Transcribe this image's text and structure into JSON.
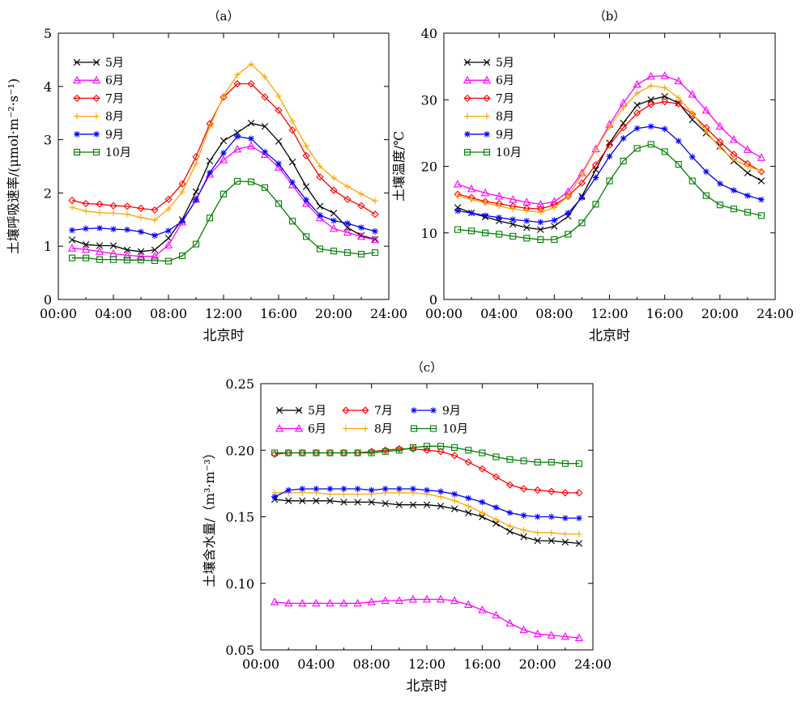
{
  "chart_data": [
    {
      "type": "line",
      "panel_label": "（a）",
      "xlabel": "北京时",
      "ylabel": "土壤呼吸速率/(μmol·m⁻²·s⁻¹)",
      "xlim": [
        0,
        24
      ],
      "ylim": [
        0,
        5
      ],
      "xticks": [
        0,
        4,
        8,
        12,
        16,
        20,
        24
      ],
      "xtick_labels": [
        "00:00",
        "04:00",
        "08:00",
        "12:00",
        "16:00",
        "20:00",
        "24:00"
      ],
      "yticks": [
        0,
        1,
        2,
        3,
        4,
        5
      ],
      "ytick_labels": [
        "0",
        "1",
        "2",
        "3",
        "4",
        "5"
      ],
      "legend": "top-left",
      "x": [
        1,
        2,
        3,
        4,
        5,
        6,
        7,
        8,
        9,
        10,
        11,
        12,
        13,
        14,
        15,
        16,
        17,
        18,
        19,
        20,
        21,
        22,
        23
      ],
      "series": [
        {
          "name": "5月",
          "color": "#000000",
          "marker": "x",
          "values": [
            1.12,
            1.03,
            1.01,
            1.01,
            0.93,
            0.9,
            0.93,
            1.15,
            1.5,
            2.02,
            2.6,
            2.98,
            3.13,
            3.31,
            3.25,
            2.97,
            2.58,
            2.12,
            1.75,
            1.62,
            1.35,
            1.2,
            1.13
          ]
        },
        {
          "name": "6月",
          "color": "#ff00ff",
          "marker": "triangle",
          "values": [
            0.96,
            0.94,
            0.9,
            0.86,
            0.83,
            0.81,
            0.81,
            1.02,
            1.45,
            1.88,
            2.35,
            2.62,
            2.82,
            2.88,
            2.72,
            2.48,
            2.15,
            1.8,
            1.53,
            1.33,
            1.26,
            1.18,
            1.12
          ]
        },
        {
          "name": "7月",
          "color": "#ff0000",
          "marker": "diamond",
          "values": [
            1.86,
            1.8,
            1.79,
            1.76,
            1.75,
            1.71,
            1.68,
            1.88,
            2.17,
            2.68,
            3.3,
            3.8,
            4.05,
            4.05,
            3.8,
            3.55,
            3.18,
            2.7,
            2.3,
            2.05,
            1.88,
            1.76,
            1.6
          ]
        },
        {
          "name": "8月",
          "color": "#ffa500",
          "marker": "plus",
          "values": [
            1.73,
            1.66,
            1.63,
            1.62,
            1.6,
            1.54,
            1.49,
            1.7,
            2.02,
            2.55,
            3.25,
            3.82,
            4.22,
            4.42,
            4.18,
            3.82,
            3.35,
            2.88,
            2.5,
            2.28,
            2.12,
            1.98,
            1.85
          ]
        },
        {
          "name": "9月",
          "color": "#0000ff",
          "marker": "asterisk",
          "values": [
            1.3,
            1.33,
            1.34,
            1.32,
            1.31,
            1.27,
            1.2,
            1.29,
            1.47,
            1.87,
            2.38,
            2.75,
            3.06,
            3.02,
            2.77,
            2.55,
            2.2,
            1.87,
            1.58,
            1.48,
            1.43,
            1.35,
            1.28
          ]
        },
        {
          "name": "10月",
          "color": "#008000",
          "marker": "square",
          "values": [
            0.78,
            0.78,
            0.75,
            0.75,
            0.74,
            0.74,
            0.73,
            0.72,
            0.82,
            1.04,
            1.53,
            1.98,
            2.22,
            2.21,
            2.1,
            1.8,
            1.47,
            1.18,
            0.95,
            0.91,
            0.88,
            0.85,
            0.88
          ]
        }
      ]
    },
    {
      "type": "line",
      "panel_label": "（b）",
      "xlabel": "北京时",
      "ylabel": "土壤温度/℃",
      "xlim": [
        0,
        24
      ],
      "ylim": [
        0,
        40
      ],
      "xticks": [
        0,
        4,
        8,
        12,
        16,
        20,
        24
      ],
      "xtick_labels": [
        "00:00",
        "04:00",
        "08:00",
        "12:00",
        "16:00",
        "20:00",
        "24:00"
      ],
      "yticks": [
        0,
        10,
        20,
        30,
        40
      ],
      "ytick_labels": [
        "0",
        "10",
        "20",
        "30",
        "40"
      ],
      "legend": "top-left",
      "x": [
        1,
        2,
        3,
        4,
        5,
        6,
        7,
        8,
        9,
        10,
        11,
        12,
        13,
        14,
        15,
        16,
        17,
        18,
        19,
        20,
        21,
        22,
        23
      ],
      "series": [
        {
          "name": "5月",
          "color": "#000000",
          "marker": "x",
          "values": [
            13.8,
            13.0,
            12.4,
            11.8,
            11.3,
            10.8,
            10.5,
            11.0,
            12.5,
            15.5,
            19.5,
            23.5,
            26.5,
            29.2,
            30.0,
            30.5,
            29.5,
            27.0,
            25.0,
            23.0,
            20.8,
            19.0,
            17.8
          ]
        },
        {
          "name": "6月",
          "color": "#ff00ff",
          "marker": "triangle",
          "values": [
            17.3,
            16.6,
            16.0,
            15.5,
            15.0,
            14.6,
            14.3,
            14.7,
            16.2,
            19.0,
            22.6,
            26.3,
            29.5,
            32.3,
            33.5,
            33.6,
            32.8,
            30.8,
            28.4,
            26.0,
            24.0,
            22.5,
            21.3
          ]
        },
        {
          "name": "7月",
          "color": "#ff0000",
          "marker": "diamond",
          "values": [
            15.8,
            15.3,
            14.7,
            14.4,
            14.0,
            13.7,
            13.6,
            14.2,
            15.5,
            17.5,
            20.2,
            23.2,
            25.8,
            28.0,
            29.3,
            29.7,
            29.4,
            27.8,
            25.8,
            23.7,
            21.8,
            20.4,
            19.2
          ]
        },
        {
          "name": "8月",
          "color": "#ffa500",
          "marker": "plus",
          "values": [
            15.6,
            15.0,
            14.5,
            14.0,
            13.6,
            13.3,
            13.1,
            13.8,
            15.5,
            18.8,
            22.5,
            26.0,
            28.8,
            31.0,
            32.1,
            31.8,
            30.3,
            28.0,
            25.2,
            22.8,
            21.0,
            20.0,
            19.3
          ]
        },
        {
          "name": "9月",
          "color": "#0000ff",
          "marker": "asterisk",
          "values": [
            13.3,
            13.0,
            12.6,
            12.3,
            12.0,
            11.8,
            11.6,
            11.9,
            13.0,
            15.3,
            18.3,
            21.5,
            24.2,
            25.7,
            26.0,
            25.6,
            23.8,
            21.4,
            19.2,
            17.4,
            16.4,
            15.6,
            15.0
          ]
        },
        {
          "name": "10月",
          "color": "#008000",
          "marker": "square",
          "values": [
            10.5,
            10.3,
            10.0,
            9.8,
            9.5,
            9.2,
            9.0,
            9.0,
            9.8,
            11.5,
            14.3,
            17.8,
            20.8,
            22.7,
            23.3,
            22.2,
            20.3,
            17.8,
            15.6,
            14.2,
            13.6,
            13.1,
            12.6
          ]
        }
      ]
    },
    {
      "type": "line",
      "panel_label": "（c）",
      "xlabel": "北京时",
      "ylabel": "土壤含水量/（m³·m⁻³）",
      "xlim": [
        0,
        24
      ],
      "ylim": [
        0.05,
        0.25
      ],
      "xticks": [
        0,
        4,
        8,
        12,
        16,
        20,
        24
      ],
      "xtick_labels": [
        "00:00",
        "04:00",
        "08:00",
        "12:00",
        "16:00",
        "20:00",
        "24:00"
      ],
      "yticks": [
        0.05,
        0.1,
        0.15,
        0.2,
        0.25
      ],
      "ytick_labels": [
        "0.05",
        "0.10",
        "0.15",
        "0.20",
        "0.25"
      ],
      "legend": "top (two rows, three columns)",
      "x": [
        1,
        2,
        3,
        4,
        5,
        6,
        7,
        8,
        9,
        10,
        11,
        12,
        13,
        14,
        15,
        16,
        17,
        18,
        19,
        20,
        21,
        22,
        23
      ],
      "series": [
        {
          "name": "5月",
          "color": "#000000",
          "marker": "x",
          "values": [
            0.163,
            0.162,
            0.162,
            0.162,
            0.162,
            0.161,
            0.161,
            0.161,
            0.16,
            0.159,
            0.159,
            0.159,
            0.158,
            0.156,
            0.153,
            0.15,
            0.145,
            0.139,
            0.135,
            0.132,
            0.132,
            0.131,
            0.13
          ]
        },
        {
          "name": "6月",
          "color": "#ff00ff",
          "marker": "triangle",
          "values": [
            0.086,
            0.085,
            0.085,
            0.085,
            0.085,
            0.085,
            0.085,
            0.086,
            0.087,
            0.087,
            0.088,
            0.088,
            0.088,
            0.087,
            0.084,
            0.08,
            0.076,
            0.07,
            0.065,
            0.062,
            0.061,
            0.06,
            0.059
          ]
        },
        {
          "name": "7月",
          "color": "#ff0000",
          "marker": "diamond",
          "values": [
            0.197,
            0.198,
            0.198,
            0.198,
            0.198,
            0.198,
            0.198,
            0.199,
            0.2,
            0.201,
            0.201,
            0.2,
            0.199,
            0.196,
            0.191,
            0.186,
            0.18,
            0.174,
            0.171,
            0.17,
            0.169,
            0.168,
            0.168
          ]
        },
        {
          "name": "8月",
          "color": "#ffa500",
          "marker": "plus",
          "values": [
            0.168,
            0.168,
            0.168,
            0.168,
            0.167,
            0.167,
            0.167,
            0.167,
            0.168,
            0.168,
            0.168,
            0.167,
            0.165,
            0.162,
            0.158,
            0.153,
            0.148,
            0.143,
            0.14,
            0.138,
            0.138,
            0.137,
            0.137
          ]
        },
        {
          "name": "9月",
          "color": "#0000ff",
          "marker": "asterisk",
          "values": [
            0.165,
            0.17,
            0.171,
            0.171,
            0.171,
            0.171,
            0.171,
            0.17,
            0.171,
            0.171,
            0.171,
            0.17,
            0.169,
            0.167,
            0.164,
            0.161,
            0.157,
            0.153,
            0.151,
            0.15,
            0.15,
            0.149,
            0.149
          ]
        },
        {
          "name": "10月",
          "color": "#008000",
          "marker": "square",
          "values": [
            0.198,
            0.198,
            0.198,
            0.198,
            0.198,
            0.198,
            0.198,
            0.198,
            0.199,
            0.2,
            0.202,
            0.203,
            0.203,
            0.202,
            0.2,
            0.198,
            0.195,
            0.193,
            0.192,
            0.191,
            0.191,
            0.19,
            0.19
          ]
        }
      ]
    }
  ]
}
